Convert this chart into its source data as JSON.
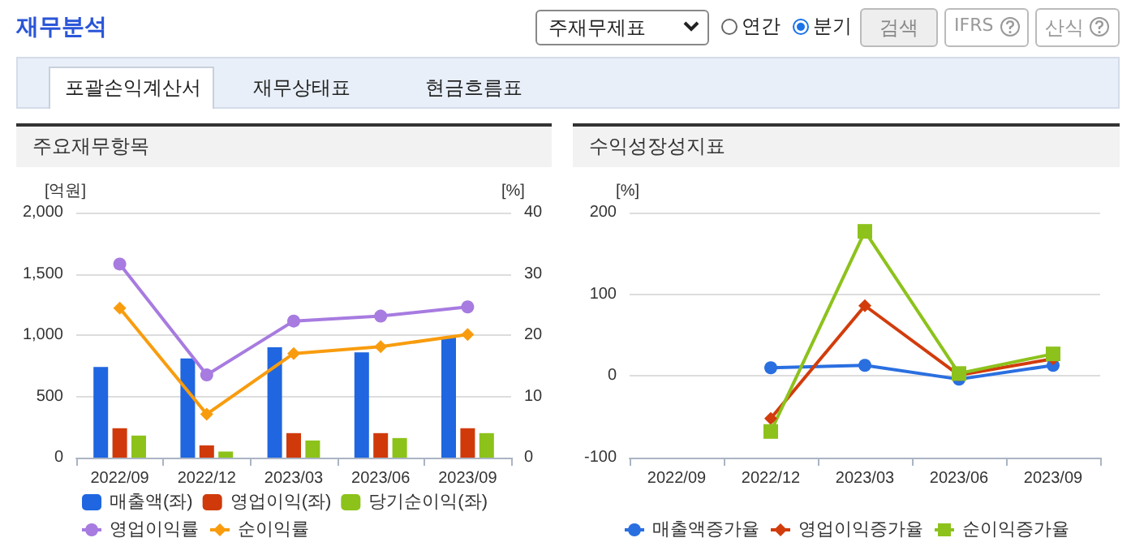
{
  "chart_data": [
    {
      "type": "other",
      "annotations": [
        "재무분석",
        "주재무제표",
        "연간",
        "분기",
        "검색",
        "IFRS",
        "산식",
        "포괄손익계산서",
        "재무상태표",
        "현금흐름표"
      ]
    },
    {
      "type": "bar",
      "title": "주요재무항목",
      "ylabel": "[억원]",
      "y2label": "[%]",
      "categories": [
        "2022/09",
        "2022/12",
        "2023/03",
        "2023/06",
        "2023/09"
      ],
      "series": [
        {
          "name": "매출액(좌)",
          "color": "#1f66e0",
          "values": [
            740,
            810,
            900,
            860,
            980
          ]
        },
        {
          "name": "영업이익(좌)",
          "color": "#d03a0a",
          "values": [
            240,
            100,
            200,
            200,
            240
          ]
        },
        {
          "name": "당기순이익(좌)",
          "color": "#8cc21a",
          "values": [
            180,
            50,
            140,
            160,
            200
          ]
        },
        {
          "name": "영업이익률",
          "type": "line",
          "axis": "y2",
          "marker": "circle",
          "color": "#a77be0",
          "values": [
            31.6,
            13.5,
            22.3,
            23.1,
            24.6
          ]
        },
        {
          "name": "순이익률",
          "type": "line",
          "axis": "y2",
          "marker": "diamond",
          "color": "#f89c0e",
          "values": [
            24.4,
            7.1,
            17.0,
            18.1,
            20.1
          ]
        }
      ],
      "ylim": [
        0,
        2000
      ],
      "yticks": [
        0,
        500,
        {
          "value": 1000,
          "label": "1,000"
        },
        {
          "value": 1500,
          "label": "1,500"
        },
        {
          "value": 2000,
          "label": "2,000"
        }
      ],
      "y2lim": [
        0,
        40
      ],
      "y2ticks": [
        0,
        10,
        20,
        30,
        40
      ],
      "grid": "y",
      "legend": "bottom",
      "line_style": "solid"
    },
    {
      "type": "line",
      "title": "수익성장성지표",
      "ylabel": "[%]",
      "categories": [
        "2022/09",
        "2022/12",
        "2023/03",
        "2023/06",
        "2023/09"
      ],
      "series": [
        {
          "name": "매출액증가율",
          "marker": "circle",
          "color": "#2a6fe0",
          "values": [
            null,
            10,
            13,
            -4,
            13
          ]
        },
        {
          "name": "영업이익증가율",
          "marker": "diamond",
          "color": "#d23c0c",
          "values": [
            null,
            -52,
            86,
            1,
            21
          ]
        },
        {
          "name": "순이익증가율",
          "marker": "square",
          "color": "#8dc21c",
          "values": [
            null,
            -68,
            177,
            3,
            27
          ]
        }
      ],
      "ylim": [
        -100,
        200
      ],
      "yticks": [
        -100,
        0,
        100,
        200
      ],
      "grid": "y",
      "legend": "bottom",
      "line_style": "solid"
    }
  ]
}
